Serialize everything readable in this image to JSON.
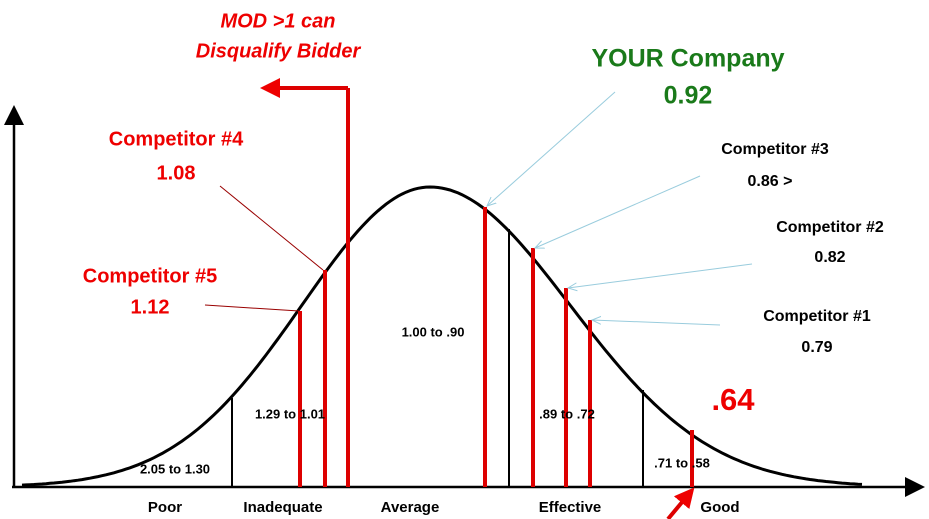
{
  "mod_note": [
    "MOD >1 can",
    "Disqualify Bidder"
  ],
  "your_company": {
    "name": "YOUR Company",
    "value": "0.92"
  },
  "competitors": [
    {
      "name": "Competitor #4",
      "value": "1.08"
    },
    {
      "name": "Competitor #5",
      "value": "1.12"
    },
    {
      "name": "Competitor #3",
      "value": "0.86 >"
    },
    {
      "name": "Competitor #2",
      "value": "0.82"
    },
    {
      "name": "Competitor #1",
      "value": "0.79"
    }
  ],
  "target": ".64",
  "ranges": [
    "2.05 to 1.30",
    "1.29 to 1.01",
    "1.00 to .90",
    ".89 to .72",
    ".71 to .58"
  ],
  "categories": [
    "Poor",
    "Inadequate",
    "Average",
    "Effective",
    "Good"
  ]
}
